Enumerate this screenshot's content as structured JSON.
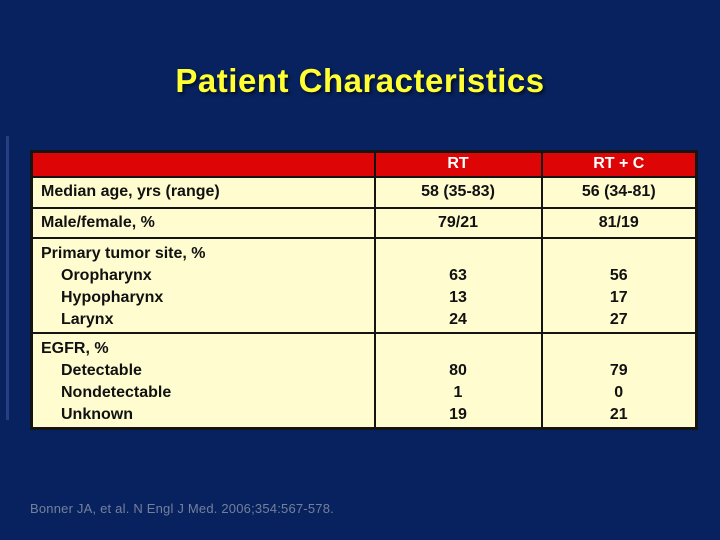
{
  "title": "Patient Characteristics",
  "citation": "Bonner JA, et al. N Engl J Med. 2006;354:567-578.",
  "table": {
    "columns": {
      "label": "",
      "rt": "RT",
      "rtc": "RT + C"
    },
    "rows": [
      {
        "label": "Median age, yrs (range)",
        "rt": "58 (35-83)",
        "rtc": "56 (34-81)"
      },
      {
        "label": "Male/female, %",
        "rt": "79/21",
        "rtc": "81/19"
      },
      {
        "label": "Primary tumor site, %",
        "sub": [
          "Oropharynx",
          "Hypopharynx",
          "Larynx"
        ],
        "rt": [
          "63",
          "13",
          "24"
        ],
        "rtc": [
          "56",
          "17",
          "27"
        ]
      },
      {
        "label": "EGFR, %",
        "sub": [
          "Detectable",
          "Nondetectable",
          "Unknown"
        ],
        "rt": [
          "80",
          "1",
          "19"
        ],
        "rtc": [
          "79",
          "0",
          "21"
        ]
      }
    ]
  },
  "colors": {
    "background": "#08225f",
    "header": "#dd0505",
    "header_text": "#ffffff",
    "cell": "#fffdd0",
    "cell_text": "#111111",
    "border": "#141414",
    "title": "#ffff33",
    "citation": "#74809a"
  }
}
